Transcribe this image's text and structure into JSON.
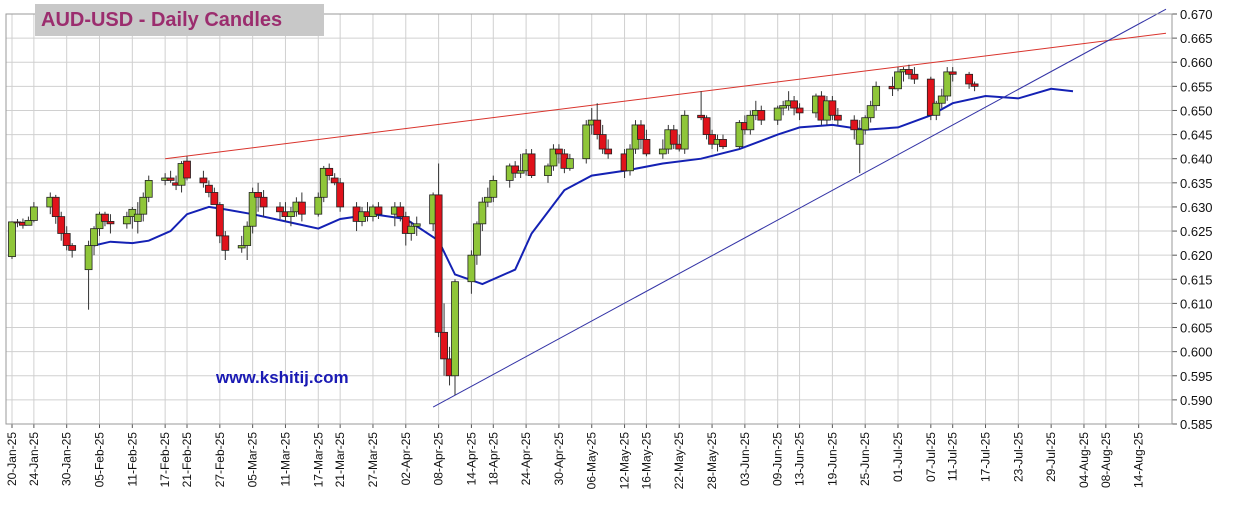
{
  "chart_data": {
    "type": "candlestick",
    "title": "AUD-USD - Daily Candles",
    "watermark": "www.kshitij.com",
    "y_axis": {
      "min": 0.585,
      "max": 0.67,
      "step": 0.005,
      "ticks": [
        "0.585",
        "0.590",
        "0.595",
        "0.600",
        "0.605",
        "0.610",
        "0.615",
        "0.620",
        "0.625",
        "0.630",
        "0.635",
        "0.640",
        "0.645",
        "0.650",
        "0.655",
        "0.660",
        "0.665",
        "0.670"
      ]
    },
    "x_axis": {
      "start": "2025-01-20",
      "end": "2025-08-19",
      "ticks": [
        "20-Jan-25",
        "24-Jan-25",
        "30-Jan-25",
        "05-Feb-25",
        "11-Feb-25",
        "17-Feb-25",
        "21-Feb-25",
        "27-Feb-25",
        "05-Mar-25",
        "11-Mar-25",
        "17-Mar-25",
        "21-Mar-25",
        "27-Mar-25",
        "02-Apr-25",
        "08-Apr-25",
        "14-Apr-25",
        "18-Apr-25",
        "24-Apr-25",
        "30-Apr-25",
        "06-May-25",
        "12-May-25",
        "16-May-25",
        "22-May-25",
        "28-May-25",
        "03-Jun-25",
        "09-Jun-25",
        "13-Jun-25",
        "19-Jun-25",
        "25-Jun-25",
        "01-Jul-25",
        "07-Jul-25",
        "11-Jul-25",
        "17-Jul-25",
        "23-Jul-25",
        "29-Jul-25",
        "04-Aug-25",
        "08-Aug-25",
        "14-Aug-25"
      ]
    },
    "grid": true,
    "colors": {
      "up": "#8fc639",
      "down": "#e0121b",
      "wick": "#333333",
      "moving_average": "#1421b4",
      "resistance": "#d9332c",
      "support": "#3333a6"
    },
    "candles": [
      [
        "2025-01-20",
        0.6197,
        0.627,
        0.6192,
        0.6269
      ],
      [
        "2025-01-21",
        0.6269,
        0.6275,
        0.6258,
        0.6268
      ],
      [
        "2025-01-22",
        0.6268,
        0.6276,
        0.6255,
        0.6262
      ],
      [
        "2025-01-23",
        0.6262,
        0.628,
        0.6265,
        0.6272
      ],
      [
        "2025-01-24",
        0.6272,
        0.631,
        0.6268,
        0.63
      ],
      [
        "2025-01-27",
        0.63,
        0.633,
        0.6285,
        0.632
      ],
      [
        "2025-01-28",
        0.632,
        0.6325,
        0.6265,
        0.628
      ],
      [
        "2025-01-29",
        0.628,
        0.629,
        0.623,
        0.6245
      ],
      [
        "2025-01-30",
        0.6245,
        0.626,
        0.621,
        0.622
      ],
      [
        "2025-01-31",
        0.622,
        0.6225,
        0.6195,
        0.621
      ],
      [
        "2025-02-03",
        0.617,
        0.623,
        0.6087,
        0.622
      ],
      [
        "2025-02-04",
        0.622,
        0.626,
        0.62,
        0.6255
      ],
      [
        "2025-02-05",
        0.6255,
        0.629,
        0.624,
        0.6285
      ],
      [
        "2025-02-06",
        0.6285,
        0.629,
        0.626,
        0.627
      ],
      [
        "2025-02-07",
        0.627,
        0.6285,
        0.6245,
        0.6265
      ],
      [
        "2025-02-10",
        0.6265,
        0.629,
        0.6255,
        0.628
      ],
      [
        "2025-02-11",
        0.628,
        0.63,
        0.6255,
        0.6295
      ],
      [
        "2025-02-12",
        0.627,
        0.631,
        0.6245,
        0.6285
      ],
      [
        "2025-02-13",
        0.6285,
        0.633,
        0.627,
        0.632
      ],
      [
        "2025-02-14",
        0.632,
        0.6365,
        0.631,
        0.6355
      ],
      [
        "2025-02-17",
        0.6355,
        0.637,
        0.6345,
        0.636
      ],
      [
        "2025-02-18",
        0.636,
        0.6375,
        0.635,
        0.6355
      ],
      [
        "2025-02-19",
        0.635,
        0.6365,
        0.6335,
        0.6345
      ],
      [
        "2025-02-20",
        0.6345,
        0.6395,
        0.633,
        0.639
      ],
      [
        "2025-02-21",
        0.6395,
        0.6405,
        0.6355,
        0.636
      ],
      [
        "2025-02-24",
        0.636,
        0.6375,
        0.634,
        0.635
      ],
      [
        "2025-02-25",
        0.6345,
        0.6355,
        0.632,
        0.633
      ],
      [
        "2025-02-26",
        0.633,
        0.634,
        0.631,
        0.6305
      ],
      [
        "2025-02-27",
        0.6305,
        0.631,
        0.6225,
        0.624
      ],
      [
        "2025-02-28",
        0.624,
        0.625,
        0.619,
        0.621
      ],
      [
        "2025-03-03",
        0.6215,
        0.624,
        0.6205,
        0.622
      ],
      [
        "2025-03-04",
        0.622,
        0.627,
        0.619,
        0.626
      ],
      [
        "2025-03-05",
        0.626,
        0.634,
        0.6245,
        0.633
      ],
      [
        "2025-03-06",
        0.633,
        0.635,
        0.629,
        0.632
      ],
      [
        "2025-03-07",
        0.632,
        0.6335,
        0.628,
        0.63
      ],
      [
        "2025-03-10",
        0.63,
        0.631,
        0.6275,
        0.629
      ],
      [
        "2025-03-11",
        0.629,
        0.631,
        0.627,
        0.628
      ],
      [
        "2025-03-12",
        0.628,
        0.63,
        0.626,
        0.629
      ],
      [
        "2025-03-13",
        0.629,
        0.632,
        0.628,
        0.631
      ],
      [
        "2025-03-14",
        0.631,
        0.633,
        0.627,
        0.6285
      ],
      [
        "2025-03-17",
        0.6285,
        0.633,
        0.628,
        0.632
      ],
      [
        "2025-03-18",
        0.632,
        0.6385,
        0.631,
        0.638
      ],
      [
        "2025-03-19",
        0.638,
        0.639,
        0.6355,
        0.6365
      ],
      [
        "2025-03-20",
        0.636,
        0.637,
        0.6345,
        0.635
      ],
      [
        "2025-03-21",
        0.635,
        0.636,
        0.629,
        0.63
      ],
      [
        "2025-03-24",
        0.63,
        0.631,
        0.625,
        0.627
      ],
      [
        "2025-03-25",
        0.627,
        0.63,
        0.626,
        0.629
      ],
      [
        "2025-03-26",
        0.629,
        0.631,
        0.627,
        0.628
      ],
      [
        "2025-03-27",
        0.628,
        0.6305,
        0.627,
        0.63
      ],
      [
        "2025-03-28",
        0.63,
        0.631,
        0.6275,
        0.6285
      ],
      [
        "2025-03-31",
        0.6285,
        0.631,
        0.626,
        0.63
      ],
      [
        "2025-04-01",
        0.63,
        0.631,
        0.627,
        0.628
      ],
      [
        "2025-04-02",
        0.628,
        0.629,
        0.622,
        0.6245
      ],
      [
        "2025-04-03",
        0.6245,
        0.627,
        0.623,
        0.626
      ],
      [
        "2025-04-04",
        0.626,
        0.628,
        0.624,
        0.6265
      ],
      [
        "2025-04-07",
        0.6265,
        0.633,
        0.625,
        0.6325
      ],
      [
        "2025-04-08",
        0.6325,
        0.639,
        0.603,
        0.604
      ],
      [
        "2025-04-09",
        0.604,
        0.61,
        0.595,
        0.5985
      ],
      [
        "2025-04-10",
        0.5985,
        0.601,
        0.593,
        0.595
      ],
      [
        "2025-04-11",
        0.595,
        0.615,
        0.591,
        0.6145
      ],
      [
        "2025-04-14",
        0.6145,
        0.621,
        0.612,
        0.62
      ],
      [
        "2025-04-15",
        0.62,
        0.627,
        0.618,
        0.6265
      ],
      [
        "2025-04-16",
        0.6265,
        0.632,
        0.625,
        0.631
      ],
      [
        "2025-04-17",
        0.631,
        0.634,
        0.63,
        0.632
      ],
      [
        "2025-04-18",
        0.632,
        0.6365,
        0.631,
        0.6355
      ],
      [
        "2025-04-21",
        0.6355,
        0.639,
        0.634,
        0.6385
      ],
      [
        "2025-04-22",
        0.6385,
        0.6395,
        0.636,
        0.637
      ],
      [
        "2025-04-23",
        0.637,
        0.641,
        0.636,
        0.6375
      ],
      [
        "2025-04-24",
        0.6375,
        0.642,
        0.6365,
        0.641
      ],
      [
        "2025-04-25",
        0.641,
        0.642,
        0.636,
        0.6365
      ],
      [
        "2025-04-28",
        0.6365,
        0.639,
        0.635,
        0.6385
      ],
      [
        "2025-04-29",
        0.6385,
        0.643,
        0.6375,
        0.642
      ],
      [
        "2025-04-30",
        0.642,
        0.643,
        0.639,
        0.641
      ],
      [
        "2025-05-01",
        0.641,
        0.642,
        0.637,
        0.638
      ],
      [
        "2025-05-02",
        0.638,
        0.641,
        0.6375,
        0.64
      ],
      [
        "2025-05-05",
        0.64,
        0.648,
        0.639,
        0.647
      ],
      [
        "2025-05-06",
        0.647,
        0.6505,
        0.645,
        0.648
      ],
      [
        "2025-05-07",
        0.648,
        0.6515,
        0.644,
        0.645
      ],
      [
        "2025-05-08",
        0.645,
        0.647,
        0.641,
        0.642
      ],
      [
        "2025-05-09",
        0.642,
        0.644,
        0.64,
        0.641
      ],
      [
        "2025-05-12",
        0.641,
        0.642,
        0.636,
        0.6375
      ],
      [
        "2025-05-13",
        0.6375,
        0.643,
        0.6365,
        0.642
      ],
      [
        "2025-05-14",
        0.642,
        0.648,
        0.641,
        0.647
      ],
      [
        "2025-05-15",
        0.647,
        0.648,
        0.642,
        0.644
      ],
      [
        "2025-05-16",
        0.644,
        0.646,
        0.6405,
        0.641
      ],
      [
        "2025-05-19",
        0.641,
        0.644,
        0.64,
        0.642
      ],
      [
        "2025-05-20",
        0.642,
        0.647,
        0.641,
        0.646
      ],
      [
        "2025-05-21",
        0.646,
        0.647,
        0.642,
        0.643
      ],
      [
        "2025-05-22",
        0.643,
        0.645,
        0.6415,
        0.642
      ],
      [
        "2025-05-23",
        0.642,
        0.65,
        0.641,
        0.649
      ],
      [
        "2025-05-26",
        0.649,
        0.654,
        0.648,
        0.6485
      ],
      [
        "2025-05-27",
        0.6485,
        0.649,
        0.644,
        0.645
      ],
      [
        "2025-05-28",
        0.645,
        0.646,
        0.642,
        0.643
      ],
      [
        "2025-05-29",
        0.643,
        0.645,
        0.6415,
        0.644
      ],
      [
        "2025-05-30",
        0.644,
        0.645,
        0.642,
        0.6425
      ],
      [
        "2025-06-02",
        0.6425,
        0.648,
        0.642,
        0.6475
      ],
      [
        "2025-06-03",
        0.6475,
        0.649,
        0.645,
        0.646
      ],
      [
        "2025-06-04",
        0.646,
        0.65,
        0.645,
        0.649
      ],
      [
        "2025-06-05",
        0.649,
        0.652,
        0.648,
        0.65
      ],
      [
        "2025-06-06",
        0.65,
        0.651,
        0.647,
        0.648
      ],
      [
        "2025-06-09",
        0.648,
        0.651,
        0.647,
        0.6505
      ],
      [
        "2025-06-10",
        0.6505,
        0.652,
        0.649,
        0.651
      ],
      [
        "2025-06-11",
        0.651,
        0.654,
        0.65,
        0.652
      ],
      [
        "2025-06-12",
        0.652,
        0.653,
        0.649,
        0.6505
      ],
      [
        "2025-06-13",
        0.6505,
        0.6515,
        0.648,
        0.6495
      ],
      [
        "2025-06-16",
        0.6495,
        0.6535,
        0.6485,
        0.653
      ],
      [
        "2025-06-17",
        0.653,
        0.654,
        0.647,
        0.648
      ],
      [
        "2025-06-18",
        0.648,
        0.653,
        0.647,
        0.652
      ],
      [
        "2025-06-19",
        0.652,
        0.653,
        0.648,
        0.649
      ],
      [
        "2025-06-20",
        0.649,
        0.6505,
        0.647,
        0.648
      ],
      [
        "2025-06-23",
        0.648,
        0.649,
        0.644,
        0.646
      ],
      [
        "2025-06-24",
        0.643,
        0.648,
        0.637,
        0.646
      ],
      [
        "2025-06-25",
        0.646,
        0.649,
        0.645,
        0.6485
      ],
      [
        "2025-06-26",
        0.6485,
        0.652,
        0.6475,
        0.651
      ],
      [
        "2025-06-27",
        0.651,
        0.656,
        0.65,
        0.655
      ],
      [
        "2025-06-30",
        0.655,
        0.657,
        0.653,
        0.6545
      ],
      [
        "2025-07-01",
        0.6545,
        0.659,
        0.654,
        0.658
      ],
      [
        "2025-07-02",
        0.658,
        0.659,
        0.656,
        0.6585
      ],
      [
        "2025-07-03",
        0.6585,
        0.6595,
        0.6565,
        0.6575
      ],
      [
        "2025-07-04",
        0.6575,
        0.659,
        0.6555,
        0.6565
      ],
      [
        "2025-07-07",
        0.6565,
        0.657,
        0.648,
        0.649
      ],
      [
        "2025-07-08",
        0.649,
        0.652,
        0.648,
        0.6515
      ],
      [
        "2025-07-09",
        0.6515,
        0.6545,
        0.6505,
        0.653
      ],
      [
        "2025-07-10",
        0.653,
        0.659,
        0.652,
        0.658
      ],
      [
        "2025-07-11",
        0.658,
        0.659,
        0.656,
        0.6575
      ],
      [
        "2025-07-14",
        0.6575,
        0.658,
        0.6545,
        0.6555
      ],
      [
        "2025-07-15",
        0.6555,
        0.656,
        0.654,
        0.655
      ]
    ],
    "moving_average": [
      [
        "2025-02-04",
        0.622
      ],
      [
        "2025-02-07",
        0.6228
      ],
      [
        "2025-02-11",
        0.6225
      ],
      [
        "2025-02-14",
        0.623
      ],
      [
        "2025-02-18",
        0.625
      ],
      [
        "2025-02-21",
        0.6285
      ],
      [
        "2025-02-25",
        0.63
      ],
      [
        "2025-02-28",
        0.6295
      ],
      [
        "2025-03-05",
        0.6285
      ],
      [
        "2025-03-11",
        0.627
      ],
      [
        "2025-03-17",
        0.6255
      ],
      [
        "2025-03-21",
        0.6275
      ],
      [
        "2025-03-27",
        0.6285
      ],
      [
        "2025-04-02",
        0.6275
      ],
      [
        "2025-04-08",
        0.623
      ],
      [
        "2025-04-11",
        0.616
      ],
      [
        "2025-04-16",
        0.614
      ],
      [
        "2025-04-22",
        0.617
      ],
      [
        "2025-04-25",
        0.6245
      ],
      [
        "2025-05-01",
        0.6335
      ],
      [
        "2025-05-06",
        0.6365
      ],
      [
        "2025-05-12",
        0.6375
      ],
      [
        "2025-05-19",
        0.639
      ],
      [
        "2025-05-26",
        0.64
      ],
      [
        "2025-06-02",
        0.642
      ],
      [
        "2025-06-09",
        0.645
      ],
      [
        "2025-06-13",
        0.6465
      ],
      [
        "2025-06-19",
        0.647
      ],
      [
        "2025-06-25",
        0.646
      ],
      [
        "2025-07-01",
        0.6465
      ],
      [
        "2025-07-07",
        0.649
      ],
      [
        "2025-07-11",
        0.6515
      ],
      [
        "2025-07-17",
        0.653
      ],
      [
        "2025-07-23",
        0.6525
      ],
      [
        "2025-07-29",
        0.6545
      ],
      [
        "2025-08-02",
        0.654
      ]
    ],
    "trendlines": [
      {
        "kind": "resistance",
        "from": [
          "2025-02-17",
          0.64
        ],
        "to": [
          "2025-08-19",
          0.666
        ]
      },
      {
        "kind": "support",
        "from": [
          "2025-04-07",
          0.5885
        ],
        "to": [
          "2025-08-19",
          0.671
        ]
      }
    ]
  }
}
